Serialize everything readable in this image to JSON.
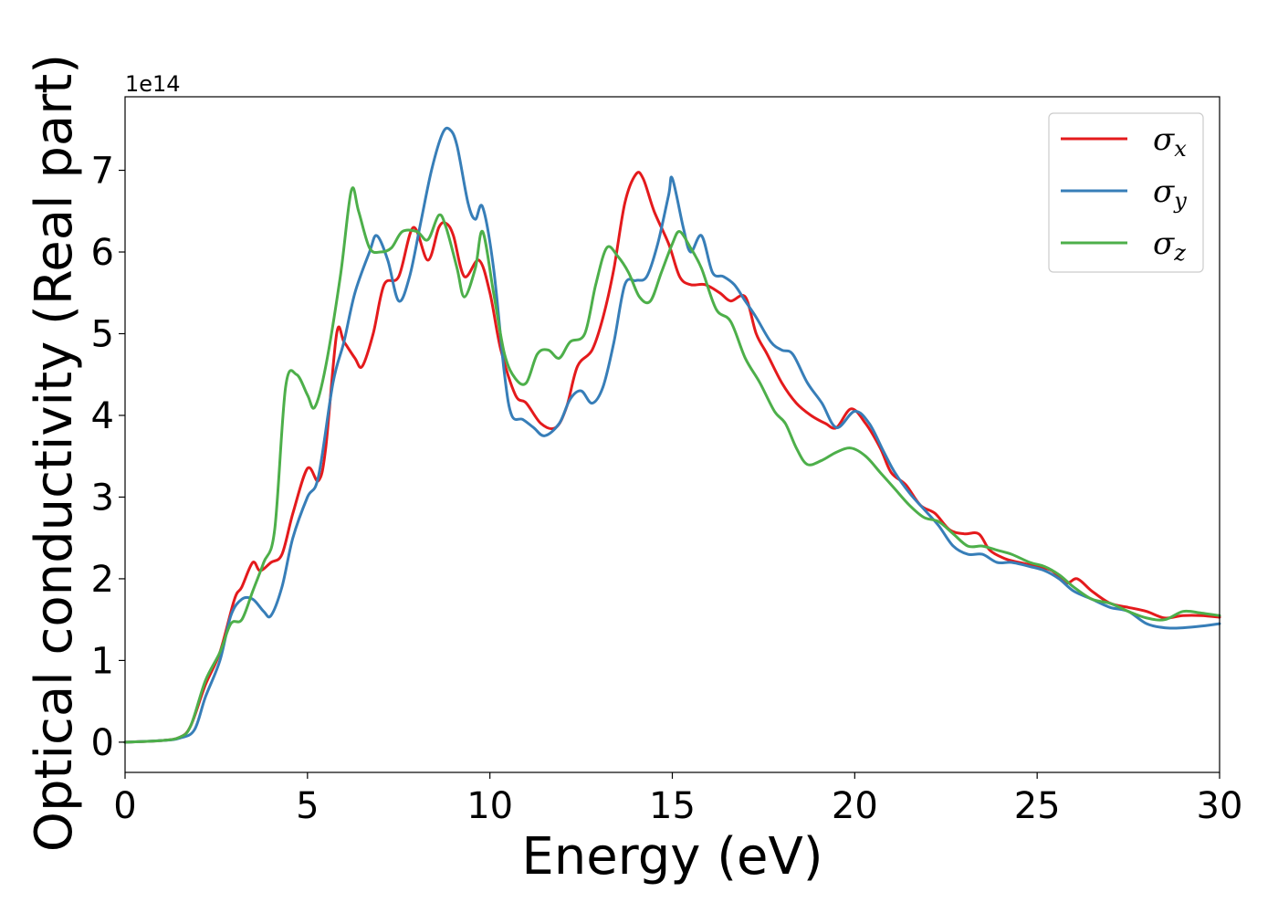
{
  "chart_data": {
    "type": "line",
    "title": "",
    "xlabel": "Energy (eV)",
    "ylabel": "Optical conductivity (Real part)",
    "y_offset_label": "1e14",
    "xlim": [
      0,
      30
    ],
    "ylim": [
      -0.37,
      7.9
    ],
    "x_ticks": [
      0,
      5,
      10,
      15,
      20,
      25,
      30
    ],
    "y_ticks": [
      0,
      1,
      2,
      3,
      4,
      5,
      6,
      7
    ],
    "grid": false,
    "legend_position": "top-right",
    "series": [
      {
        "name": "σx",
        "symbol": "σ",
        "subscript": "x",
        "color": "#e41a1c",
        "points": [
          [
            0,
            0
          ],
          [
            1,
            0.02
          ],
          [
            1.5,
            0.06
          ],
          [
            1.8,
            0.2
          ],
          [
            2.2,
            0.7
          ],
          [
            2.6,
            1.1
          ],
          [
            3.0,
            1.75
          ],
          [
            3.2,
            1.9
          ],
          [
            3.5,
            2.2
          ],
          [
            3.7,
            2.1
          ],
          [
            4.0,
            2.2
          ],
          [
            4.3,
            2.3
          ],
          [
            4.6,
            2.8
          ],
          [
            5.0,
            3.35
          ],
          [
            5.3,
            3.2
          ],
          [
            5.5,
            3.6
          ],
          [
            5.8,
            5.0
          ],
          [
            6.0,
            4.9
          ],
          [
            6.3,
            4.7
          ],
          [
            6.5,
            4.6
          ],
          [
            6.8,
            5.0
          ],
          [
            7.1,
            5.6
          ],
          [
            7.5,
            5.7
          ],
          [
            7.9,
            6.3
          ],
          [
            8.3,
            5.9
          ],
          [
            8.6,
            6.3
          ],
          [
            8.8,
            6.35
          ],
          [
            9.0,
            6.2
          ],
          [
            9.3,
            5.7
          ],
          [
            9.7,
            5.9
          ],
          [
            10.0,
            5.5
          ],
          [
            10.3,
            4.8
          ],
          [
            10.7,
            4.25
          ],
          [
            11.0,
            4.15
          ],
          [
            11.4,
            3.9
          ],
          [
            11.8,
            3.85
          ],
          [
            12.1,
            4.1
          ],
          [
            12.4,
            4.6
          ],
          [
            12.8,
            4.8
          ],
          [
            13.1,
            5.2
          ],
          [
            13.4,
            5.8
          ],
          [
            13.7,
            6.6
          ],
          [
            14.0,
            6.95
          ],
          [
            14.2,
            6.9
          ],
          [
            14.5,
            6.5
          ],
          [
            14.9,
            6.1
          ],
          [
            15.2,
            5.7
          ],
          [
            15.5,
            5.6
          ],
          [
            15.9,
            5.6
          ],
          [
            16.3,
            5.5
          ],
          [
            16.6,
            5.4
          ],
          [
            17.0,
            5.45
          ],
          [
            17.3,
            5.0
          ],
          [
            17.6,
            4.75
          ],
          [
            18.0,
            4.4
          ],
          [
            18.4,
            4.15
          ],
          [
            18.8,
            4.0
          ],
          [
            19.2,
            3.9
          ],
          [
            19.5,
            3.85
          ],
          [
            19.9,
            4.08
          ],
          [
            20.3,
            3.9
          ],
          [
            20.7,
            3.6
          ],
          [
            21.0,
            3.3
          ],
          [
            21.4,
            3.15
          ],
          [
            21.8,
            2.9
          ],
          [
            22.2,
            2.8
          ],
          [
            22.6,
            2.6
          ],
          [
            23.0,
            2.55
          ],
          [
            23.4,
            2.55
          ],
          [
            23.7,
            2.35
          ],
          [
            24.1,
            2.25
          ],
          [
            24.5,
            2.2
          ],
          [
            25.0,
            2.15
          ],
          [
            25.4,
            2.1
          ],
          [
            25.8,
            1.95
          ],
          [
            26.1,
            2.0
          ],
          [
            26.5,
            1.85
          ],
          [
            27.0,
            1.7
          ],
          [
            27.5,
            1.65
          ],
          [
            28.0,
            1.6
          ],
          [
            28.5,
            1.52
          ],
          [
            29.0,
            1.55
          ],
          [
            29.5,
            1.55
          ],
          [
            30.0,
            1.53
          ]
        ]
      },
      {
        "name": "σy",
        "symbol": "σ",
        "subscript": "y",
        "color": "#377eb8",
        "points": [
          [
            0,
            0
          ],
          [
            1,
            0.02
          ],
          [
            1.5,
            0.05
          ],
          [
            1.9,
            0.15
          ],
          [
            2.2,
            0.55
          ],
          [
            2.6,
            1.0
          ],
          [
            2.9,
            1.55
          ],
          [
            3.2,
            1.75
          ],
          [
            3.5,
            1.75
          ],
          [
            3.8,
            1.6
          ],
          [
            4.0,
            1.55
          ],
          [
            4.3,
            1.9
          ],
          [
            4.6,
            2.5
          ],
          [
            5.0,
            3.0
          ],
          [
            5.3,
            3.25
          ],
          [
            5.7,
            4.4
          ],
          [
            6.0,
            4.9
          ],
          [
            6.3,
            5.5
          ],
          [
            6.7,
            6.0
          ],
          [
            6.9,
            6.2
          ],
          [
            7.2,
            5.9
          ],
          [
            7.5,
            5.4
          ],
          [
            7.8,
            5.7
          ],
          [
            8.1,
            6.35
          ],
          [
            8.4,
            7.0
          ],
          [
            8.7,
            7.45
          ],
          [
            8.9,
            7.5
          ],
          [
            9.1,
            7.3
          ],
          [
            9.4,
            6.6
          ],
          [
            9.6,
            6.4
          ],
          [
            9.8,
            6.55
          ],
          [
            10.1,
            5.8
          ],
          [
            10.4,
            4.5
          ],
          [
            10.6,
            4.0
          ],
          [
            10.9,
            3.95
          ],
          [
            11.2,
            3.85
          ],
          [
            11.5,
            3.75
          ],
          [
            11.9,
            3.9
          ],
          [
            12.2,
            4.2
          ],
          [
            12.5,
            4.3
          ],
          [
            12.8,
            4.15
          ],
          [
            13.1,
            4.35
          ],
          [
            13.4,
            4.9
          ],
          [
            13.7,
            5.6
          ],
          [
            14.0,
            5.65
          ],
          [
            14.3,
            5.7
          ],
          [
            14.6,
            6.1
          ],
          [
            14.9,
            6.7
          ],
          [
            15.0,
            6.9
          ],
          [
            15.3,
            6.3
          ],
          [
            15.5,
            6.0
          ],
          [
            15.8,
            6.2
          ],
          [
            16.1,
            5.75
          ],
          [
            16.4,
            5.7
          ],
          [
            16.7,
            5.6
          ],
          [
            17.0,
            5.4
          ],
          [
            17.3,
            5.2
          ],
          [
            17.7,
            4.9
          ],
          [
            18.0,
            4.8
          ],
          [
            18.3,
            4.75
          ],
          [
            18.7,
            4.4
          ],
          [
            19.1,
            4.15
          ],
          [
            19.5,
            3.85
          ],
          [
            20.0,
            4.05
          ],
          [
            20.4,
            3.9
          ],
          [
            20.8,
            3.55
          ],
          [
            21.1,
            3.3
          ],
          [
            21.5,
            3.05
          ],
          [
            21.9,
            2.85
          ],
          [
            22.3,
            2.65
          ],
          [
            22.7,
            2.4
          ],
          [
            23.1,
            2.3
          ],
          [
            23.5,
            2.3
          ],
          [
            23.9,
            2.2
          ],
          [
            24.3,
            2.2
          ],
          [
            24.8,
            2.15
          ],
          [
            25.2,
            2.1
          ],
          [
            25.6,
            2.0
          ],
          [
            26.0,
            1.85
          ],
          [
            26.5,
            1.75
          ],
          [
            27.0,
            1.65
          ],
          [
            27.5,
            1.6
          ],
          [
            28.0,
            1.45
          ],
          [
            28.5,
            1.4
          ],
          [
            29.0,
            1.4
          ],
          [
            29.5,
            1.42
          ],
          [
            30.0,
            1.45
          ]
        ]
      },
      {
        "name": "σz",
        "symbol": "σ",
        "subscript": "z",
        "color": "#4daf4a",
        "points": [
          [
            0,
            0
          ],
          [
            1,
            0.02
          ],
          [
            1.5,
            0.06
          ],
          [
            1.8,
            0.2
          ],
          [
            2.2,
            0.75
          ],
          [
            2.6,
            1.1
          ],
          [
            2.9,
            1.45
          ],
          [
            3.2,
            1.5
          ],
          [
            3.5,
            1.85
          ],
          [
            3.8,
            2.2
          ],
          [
            4.1,
            2.6
          ],
          [
            4.4,
            4.35
          ],
          [
            4.7,
            4.5
          ],
          [
            5.0,
            4.25
          ],
          [
            5.2,
            4.1
          ],
          [
            5.5,
            4.6
          ],
          [
            5.9,
            5.7
          ],
          [
            6.2,
            6.75
          ],
          [
            6.4,
            6.5
          ],
          [
            6.7,
            6.05
          ],
          [
            7.0,
            6.0
          ],
          [
            7.3,
            6.05
          ],
          [
            7.6,
            6.25
          ],
          [
            8.0,
            6.25
          ],
          [
            8.3,
            6.15
          ],
          [
            8.6,
            6.45
          ],
          [
            8.8,
            6.3
          ],
          [
            9.1,
            5.8
          ],
          [
            9.3,
            5.45
          ],
          [
            9.6,
            5.8
          ],
          [
            9.8,
            6.25
          ],
          [
            10.1,
            5.5
          ],
          [
            10.4,
            4.75
          ],
          [
            10.7,
            4.45
          ],
          [
            11.0,
            4.4
          ],
          [
            11.3,
            4.75
          ],
          [
            11.6,
            4.8
          ],
          [
            11.9,
            4.7
          ],
          [
            12.2,
            4.9
          ],
          [
            12.6,
            5.0
          ],
          [
            12.9,
            5.6
          ],
          [
            13.2,
            6.05
          ],
          [
            13.5,
            5.95
          ],
          [
            13.8,
            5.75
          ],
          [
            14.1,
            5.45
          ],
          [
            14.4,
            5.4
          ],
          [
            14.7,
            5.75
          ],
          [
            15.0,
            6.1
          ],
          [
            15.2,
            6.25
          ],
          [
            15.5,
            6.05
          ],
          [
            15.8,
            5.8
          ],
          [
            16.2,
            5.3
          ],
          [
            16.6,
            5.15
          ],
          [
            17.0,
            4.7
          ],
          [
            17.4,
            4.4
          ],
          [
            17.8,
            4.05
          ],
          [
            18.1,
            3.9
          ],
          [
            18.4,
            3.6
          ],
          [
            18.7,
            3.4
          ],
          [
            19.1,
            3.45
          ],
          [
            19.5,
            3.55
          ],
          [
            19.9,
            3.6
          ],
          [
            20.3,
            3.5
          ],
          [
            20.7,
            3.3
          ],
          [
            21.1,
            3.1
          ],
          [
            21.5,
            2.9
          ],
          [
            21.9,
            2.75
          ],
          [
            22.3,
            2.7
          ],
          [
            22.7,
            2.55
          ],
          [
            23.1,
            2.4
          ],
          [
            23.5,
            2.4
          ],
          [
            23.9,
            2.35
          ],
          [
            24.3,
            2.3
          ],
          [
            24.8,
            2.2
          ],
          [
            25.2,
            2.15
          ],
          [
            25.6,
            2.05
          ],
          [
            26.0,
            1.9
          ],
          [
            26.5,
            1.75
          ],
          [
            27.0,
            1.7
          ],
          [
            27.5,
            1.6
          ],
          [
            28.0,
            1.52
          ],
          [
            28.5,
            1.5
          ],
          [
            29.0,
            1.6
          ],
          [
            29.5,
            1.58
          ],
          [
            30.0,
            1.55
          ]
        ]
      }
    ]
  }
}
